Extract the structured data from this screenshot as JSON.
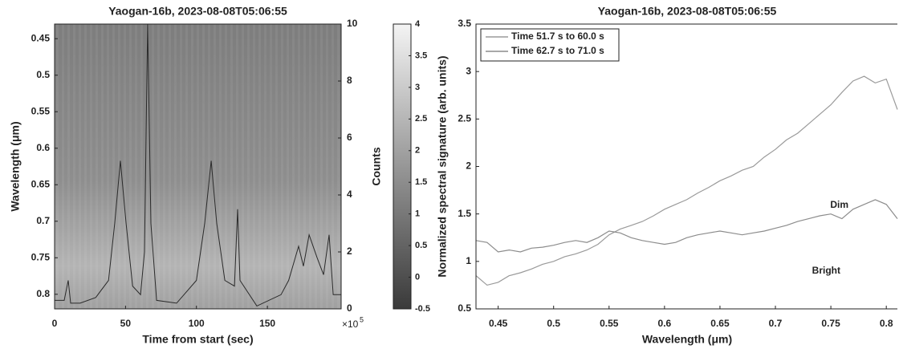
{
  "chart_data": [
    {
      "type": "spectrogram",
      "title": "Yaogan-16b, 2023-08-08T05:06:55",
      "x_label": "Time from start (sec)",
      "y_label": "Wavelength (μm)",
      "y2_label": "Counts",
      "x_multiplier": "×10",
      "x_multiplier_power": "5",
      "xlim": [
        0,
        202
      ],
      "xticks": [
        0,
        50,
        100,
        150
      ],
      "ylim": [
        0.82,
        0.43
      ],
      "yticks": [
        0.45,
        0.5,
        0.55,
        0.6,
        0.65,
        0.7,
        0.75,
        0.8
      ],
      "y2lim": [
        0,
        10
      ],
      "y2ticks": [
        0,
        2,
        4,
        6,
        8,
        10
      ],
      "colorbar": {
        "lim": [
          -0.5,
          4
        ],
        "ticks": [
          -0.5,
          0,
          0.5,
          1,
          1.5,
          2,
          2.5,
          3,
          3.5,
          4
        ],
        "colors": [
          "#3a3a3a",
          "#f4f4f4"
        ]
      },
      "x": [
        0,
        6.8,
        9.6,
        11.3,
        18,
        29,
        38,
        42.4,
        46.4,
        50.4,
        55,
        60.6,
        63.4,
        65.6,
        67.9,
        71.9,
        86,
        100,
        105.8,
        110.4,
        114.3,
        120,
        126.8,
        129,
        130.7,
        142.6,
        159.6,
        165,
        172,
        175.4,
        179.4,
        185,
        189.6,
        193.5,
        196.4,
        202
      ],
      "series": [
        {
          "color": "#2a2a2a",
          "axis": "y2",
          "values": [
            0.3,
            0.3,
            1.0,
            0.2,
            0.2,
            0.4,
            1.0,
            3.0,
            5.2,
            3.0,
            0.8,
            0.5,
            2.0,
            10,
            3.0,
            0.3,
            0.2,
            1.0,
            3.0,
            5.2,
            3.0,
            1.0,
            0.8,
            3.5,
            1.0,
            0.1,
            0.5,
            1.0,
            2.2,
            1.5,
            2.6,
            1.8,
            1.2,
            2.6,
            0.5,
            0.5
          ]
        }
      ]
    },
    {
      "type": "line",
      "title": "Yaogan-16b, 2023-08-08T05:06:55",
      "x_label": "Wavelength (μm)",
      "y_label": "Normalized spectral signature (arb. units)",
      "xlim": [
        0.43,
        0.81
      ],
      "xticks": [
        0.45,
        0.5,
        0.55,
        0.6,
        0.65,
        0.7,
        0.75,
        0.8
      ],
      "ylim": [
        0.5,
        3.5
      ],
      "yticks": [
        0.5,
        1,
        1.5,
        2,
        2.5,
        3,
        3.5
      ],
      "legend": "upper left",
      "x": [
        0.43,
        0.44,
        0.45,
        0.46,
        0.47,
        0.48,
        0.49,
        0.5,
        0.51,
        0.52,
        0.53,
        0.54,
        0.55,
        0.56,
        0.57,
        0.58,
        0.59,
        0.6,
        0.61,
        0.62,
        0.63,
        0.64,
        0.65,
        0.66,
        0.67,
        0.68,
        0.69,
        0.7,
        0.71,
        0.72,
        0.73,
        0.74,
        0.75,
        0.76,
        0.77,
        0.78,
        0.79,
        0.8,
        0.81
      ],
      "series": [
        {
          "name": "Time 51.7 s to 60.0 s",
          "color": "#9a9a9a",
          "values": [
            0.85,
            0.75,
            0.78,
            0.85,
            0.88,
            0.92,
            0.97,
            1.0,
            1.05,
            1.08,
            1.12,
            1.18,
            1.28,
            1.34,
            1.38,
            1.42,
            1.48,
            1.55,
            1.6,
            1.65,
            1.72,
            1.78,
            1.85,
            1.9,
            1.96,
            2.0,
            2.1,
            2.18,
            2.28,
            2.35,
            2.45,
            2.55,
            2.65,
            2.78,
            2.9,
            2.95,
            2.88,
            2.92,
            2.6
          ]
        },
        {
          "name": "Time 62.7 s to 71.0 s",
          "color": "#8c8c8c",
          "values": [
            1.22,
            1.2,
            1.1,
            1.12,
            1.1,
            1.14,
            1.15,
            1.17,
            1.2,
            1.22,
            1.2,
            1.25,
            1.32,
            1.3,
            1.25,
            1.22,
            1.2,
            1.18,
            1.2,
            1.25,
            1.28,
            1.3,
            1.32,
            1.3,
            1.28,
            1.3,
            1.32,
            1.35,
            1.38,
            1.42,
            1.45,
            1.48,
            1.5,
            1.45,
            1.55,
            1.6,
            1.65,
            1.6,
            1.45
          ]
        }
      ],
      "annotations": [
        {
          "text": "Dim"
        },
        {
          "text": "Bright"
        }
      ]
    }
  ]
}
